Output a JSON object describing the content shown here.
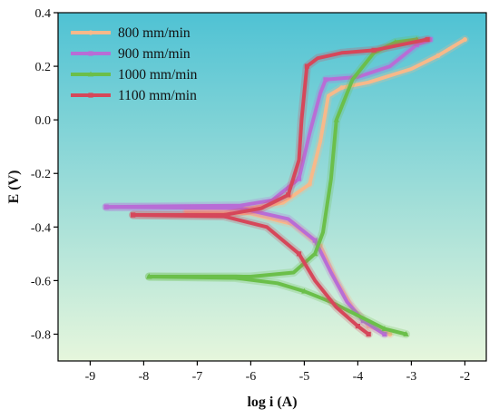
{
  "chart_data": {
    "type": "line",
    "xlabel": "log i (A)",
    "ylabel": "E (V)",
    "xlim": [
      -9.6,
      -1.6
    ],
    "ylim": [
      -0.9,
      0.4
    ],
    "xticks": [
      -9,
      -8,
      -7,
      -6,
      -5,
      -4,
      -3,
      -2
    ],
    "yticks": [
      -0.8,
      -0.6,
      -0.4,
      -0.2,
      0.0,
      0.2,
      0.4
    ],
    "xtick_labels": [
      "-9",
      "-8",
      "-7",
      "-6",
      "-5",
      "-4",
      "-3",
      "-2"
    ],
    "ytick_labels": [
      "-0.8",
      "-0.6",
      "-0.4",
      "-0.2",
      "0.0",
      "0.2",
      "0.4"
    ],
    "grid": false,
    "legend_position": "top-left",
    "background_gradient": [
      "#4fc2d4",
      "#e6f6dc"
    ],
    "series": [
      {
        "name": "800 mm/min",
        "color": "#f7b98a",
        "marker": "circle",
        "anodic": [
          [
            -7.2,
            -0.34
          ],
          [
            -6.0,
            -0.33
          ],
          [
            -5.4,
            -0.31
          ],
          [
            -4.9,
            -0.24
          ],
          [
            -4.7,
            -0.08
          ],
          [
            -4.55,
            0.09
          ],
          [
            -4.3,
            0.12
          ],
          [
            -3.8,
            0.14
          ],
          [
            -3.0,
            0.19
          ],
          [
            -2.5,
            0.24
          ],
          [
            -2.0,
            0.3
          ]
        ],
        "cathodic": [
          [
            -7.2,
            -0.34
          ],
          [
            -6.0,
            -0.35
          ],
          [
            -5.2,
            -0.39
          ],
          [
            -4.7,
            -0.47
          ],
          [
            -4.4,
            -0.6
          ],
          [
            -4.1,
            -0.7
          ],
          [
            -3.8,
            -0.77
          ],
          [
            -3.4,
            -0.8
          ]
        ]
      },
      {
        "name": "900 mm/min",
        "color": "#b86dd6",
        "marker": "square",
        "anodic": [
          [
            -8.7,
            -0.325
          ],
          [
            -6.2,
            -0.32
          ],
          [
            -5.6,
            -0.3
          ],
          [
            -5.1,
            -0.22
          ],
          [
            -4.9,
            -0.05
          ],
          [
            -4.7,
            0.1
          ],
          [
            -4.6,
            0.15
          ],
          [
            -4.0,
            0.16
          ],
          [
            -3.4,
            0.2
          ],
          [
            -2.9,
            0.28
          ],
          [
            -2.65,
            0.3
          ]
        ],
        "cathodic": [
          [
            -8.7,
            -0.325
          ],
          [
            -6.2,
            -0.33
          ],
          [
            -5.3,
            -0.37
          ],
          [
            -4.8,
            -0.45
          ],
          [
            -4.5,
            -0.57
          ],
          [
            -4.2,
            -0.68
          ],
          [
            -3.9,
            -0.75
          ],
          [
            -3.5,
            -0.8
          ]
        ]
      },
      {
        "name": "1000 mm/min",
        "color": "#6bbf4a",
        "marker": "triangle",
        "anodic": [
          [
            -7.9,
            -0.585
          ],
          [
            -6.0,
            -0.585
          ],
          [
            -5.2,
            -0.57
          ],
          [
            -4.8,
            -0.5
          ],
          [
            -4.65,
            -0.42
          ],
          [
            -4.5,
            -0.22
          ],
          [
            -4.4,
            0.0
          ],
          [
            -4.1,
            0.15
          ],
          [
            -3.7,
            0.25
          ],
          [
            -3.3,
            0.29
          ],
          [
            -2.9,
            0.3
          ]
        ],
        "cathodic": [
          [
            -7.9,
            -0.585
          ],
          [
            -6.3,
            -0.59
          ],
          [
            -5.5,
            -0.61
          ],
          [
            -5.0,
            -0.64
          ],
          [
            -4.5,
            -0.68
          ],
          [
            -4.0,
            -0.73
          ],
          [
            -3.5,
            -0.78
          ],
          [
            -3.1,
            -0.8
          ]
        ]
      },
      {
        "name": "1100 mm/min",
        "color": "#d6475a",
        "marker": "square",
        "anodic": [
          [
            -8.2,
            -0.355
          ],
          [
            -6.5,
            -0.355
          ],
          [
            -5.8,
            -0.33
          ],
          [
            -5.3,
            -0.28
          ],
          [
            -5.1,
            -0.15
          ],
          [
            -5.05,
            0.0
          ],
          [
            -4.95,
            0.2
          ],
          [
            -4.75,
            0.23
          ],
          [
            -4.3,
            0.25
          ],
          [
            -3.7,
            0.26
          ],
          [
            -3.2,
            0.28
          ],
          [
            -2.7,
            0.3
          ]
        ],
        "cathodic": [
          [
            -8.2,
            -0.355
          ],
          [
            -6.5,
            -0.36
          ],
          [
            -5.7,
            -0.4
          ],
          [
            -5.1,
            -0.5
          ],
          [
            -4.8,
            -0.6
          ],
          [
            -4.4,
            -0.7
          ],
          [
            -4.0,
            -0.77
          ],
          [
            -3.8,
            -0.8
          ]
        ]
      }
    ]
  }
}
